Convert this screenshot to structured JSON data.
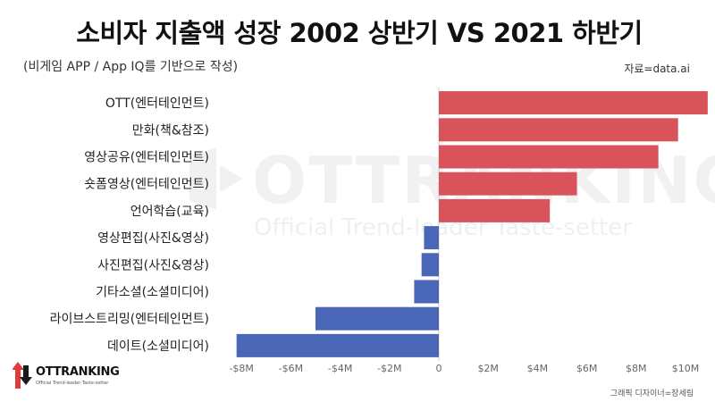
{
  "header": {
    "title": "소비자 지출액 성장 2002 상반기 VS 2021 하반기",
    "subtitle": "(비게임 APP / App IQ를 기반으로 작성)",
    "source": "자료=data.ai"
  },
  "watermark": {
    "brand": "OTTRANKING",
    "tagline": "Official Trend-leader Taste-setter"
  },
  "footer": {
    "logo_text": "OTTRANKING",
    "logo_tagline": "Official Trend-leader Taste-setter",
    "credit": "그래픽 디자이너=장세림"
  },
  "colors": {
    "positive": "#d9545a",
    "negative": "#4a66b7",
    "axis": "#cfcfcf",
    "logo_red": "#e03b3b"
  },
  "chart_data": {
    "type": "bar",
    "orientation": "horizontal",
    "title": "소비자 지출액 성장 2002 상반기 VS 2021 하반기",
    "xlabel": "",
    "ylabel": "",
    "xlim": [
      -8,
      10.8
    ],
    "unit": "M USD",
    "categories": [
      "OTT(엔터테인먼트)",
      "만화(책&참조)",
      "영상공유(엔터테인먼트)",
      "숏폼영상(엔터테인먼트)",
      "언어학습(교육)",
      "영상편집(사진&영상)",
      "사진편집(사진&영상)",
      "기타소셜(소셜미디어)",
      "라이브스트리밍(엔터테인먼트)",
      "데이트(소셜미디어)"
    ],
    "values": [
      10.9,
      9.7,
      8.9,
      5.6,
      4.5,
      -0.6,
      -0.7,
      -1.0,
      -5.0,
      -8.2
    ],
    "xticks": [
      -8,
      -6,
      -4,
      -2,
      0,
      2,
      4,
      6,
      8,
      10
    ],
    "xtick_labels": [
      "-$8M",
      "-$6M",
      "-$4M",
      "-$2M",
      "0",
      "$2M",
      "$4M",
      "$6M",
      "$8M",
      "$10M"
    ],
    "grid": false,
    "legend": "none"
  }
}
